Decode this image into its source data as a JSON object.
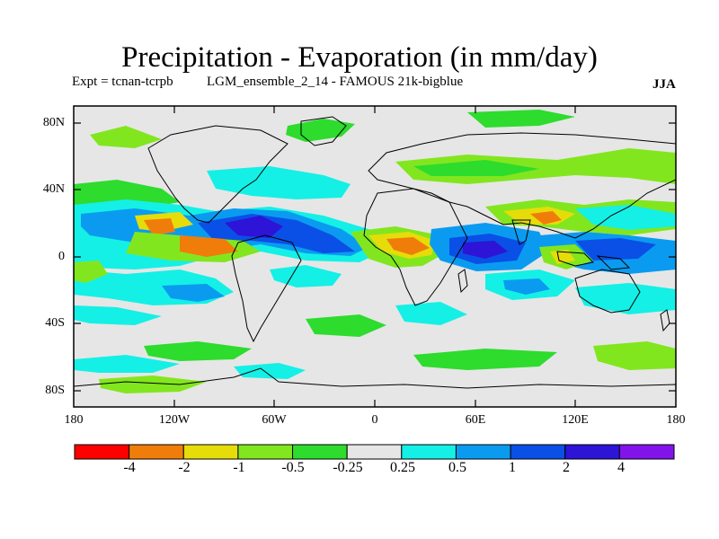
{
  "title": "Precipitation - Evaporation (in mm/day)",
  "experiment": "Expt = tcnan-tcrpb",
  "run": "LGM_ensemble_2_14 - FAMOUS 21k-bigblue",
  "season": "JJA",
  "lat_ticks": [
    "80N",
    "40N",
    "0",
    "40S",
    "80S"
  ],
  "lon_ticks": [
    "180",
    "120W",
    "60W",
    "0",
    "60E",
    "120E",
    "180"
  ],
  "colorbar": {
    "labels": [
      "-4",
      "-2",
      "-1",
      "-0.5",
      "-0.25",
      "0.25",
      "0.5",
      "1",
      "2",
      "4"
    ],
    "colors": [
      "#ff0000",
      "#f07d0a",
      "#e6dc0a",
      "#82e61e",
      "#2ddc2d",
      "#e6e6e6",
      "#14f0e6",
      "#0a9bf0",
      "#0a50e6",
      "#2d14d7",
      "#8214eb"
    ]
  }
}
